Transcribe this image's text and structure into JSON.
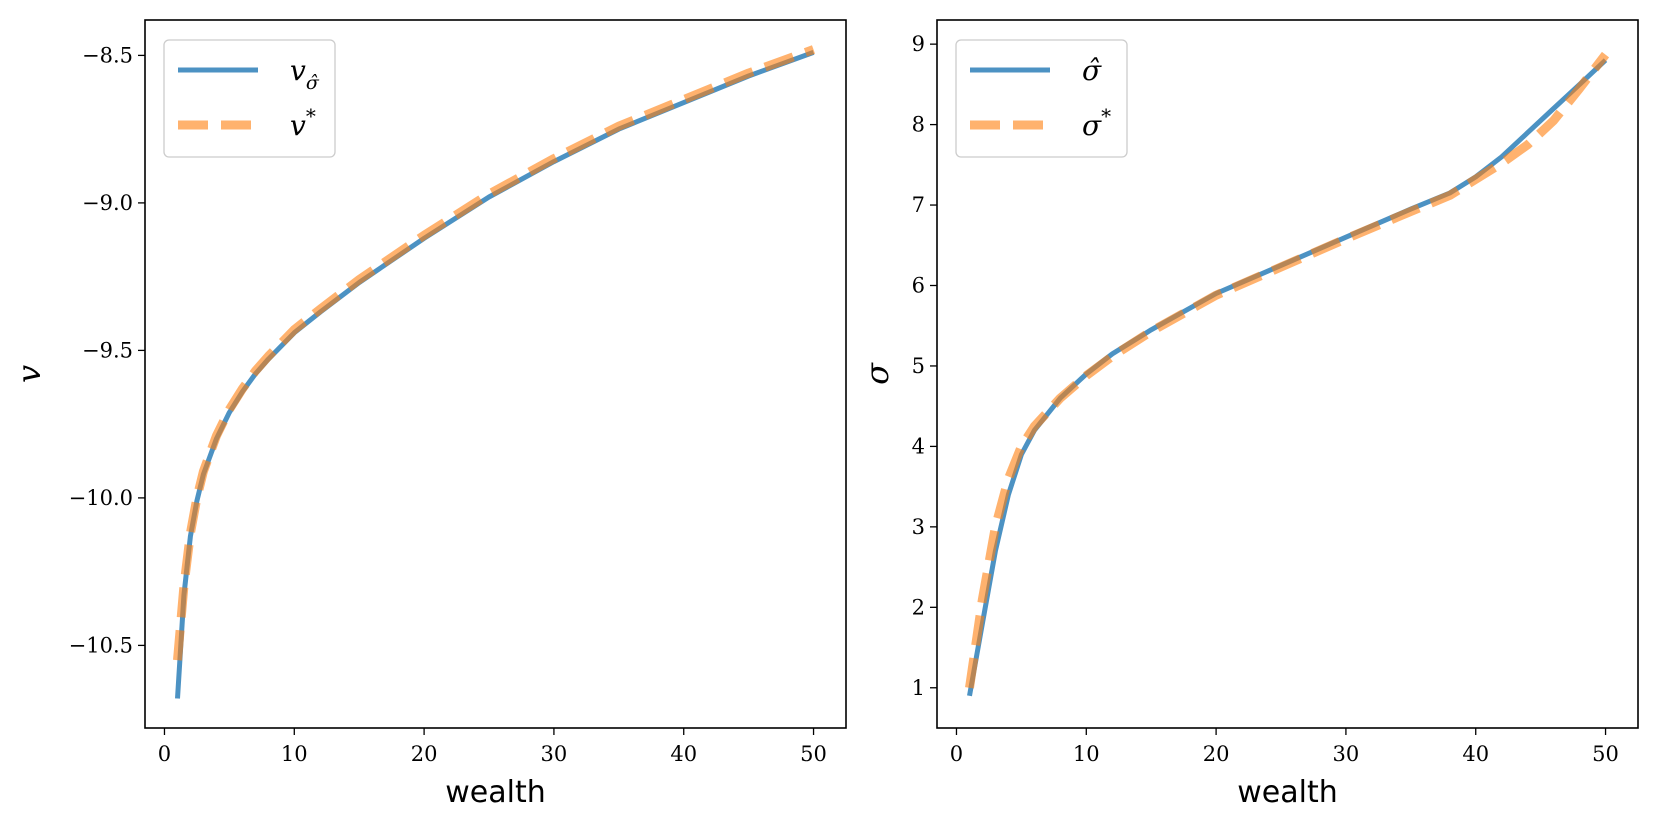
{
  "chart_data": [
    {
      "type": "line",
      "xlabel": "wealth",
      "ylabel": "v",
      "xlim": [
        -1.5,
        52.5
      ],
      "ylim": [
        -10.78,
        -8.38
      ],
      "xticks": [
        0,
        10,
        20,
        30,
        40,
        50
      ],
      "xtick_labels": [
        "0",
        "10",
        "20",
        "30",
        "40",
        "50"
      ],
      "yticks": [
        -10.5,
        -10.0,
        -9.5,
        -9.0,
        -8.5
      ],
      "ytick_labels": [
        "−10.5",
        "−10.0",
        "−9.5",
        "−9.0",
        "−8.5"
      ],
      "legend_position": "upper-left",
      "series": [
        {
          "name": "v_σ̂",
          "legend_main": "v",
          "legend_sub": "σ̂",
          "style": "solid",
          "color": "#1f77b4",
          "x": [
            1,
            1.5,
            2,
            2.5,
            3,
            4,
            5,
            6,
            7,
            8,
            10,
            12,
            15,
            20,
            25,
            30,
            35,
            40,
            45,
            50
          ],
          "y": [
            -10.68,
            -10.33,
            -10.13,
            -10.01,
            -9.92,
            -9.8,
            -9.71,
            -9.64,
            -9.58,
            -9.53,
            -9.44,
            -9.37,
            -9.27,
            -9.12,
            -8.98,
            -8.86,
            -8.75,
            -8.66,
            -8.57,
            -8.49
          ]
        },
        {
          "name": "v*",
          "legend_main": "v",
          "legend_sup": "*",
          "style": "dashed",
          "color": "#ff7f0e",
          "x": [
            1,
            1.5,
            2,
            2.5,
            3,
            4,
            5,
            6,
            7,
            8,
            10,
            12,
            15,
            20,
            25,
            30,
            35,
            40,
            45,
            50
          ],
          "y": [
            -10.55,
            -10.3,
            -10.12,
            -10.0,
            -9.91,
            -9.79,
            -9.7,
            -9.63,
            -9.57,
            -9.52,
            -9.43,
            -9.36,
            -9.26,
            -9.11,
            -8.97,
            -8.85,
            -8.74,
            -8.65,
            -8.56,
            -8.48
          ]
        }
      ]
    },
    {
      "type": "line",
      "xlabel": "wealth",
      "ylabel": "σ",
      "xlim": [
        -1.5,
        52.5
      ],
      "ylim": [
        0.5,
        9.3
      ],
      "xticks": [
        0,
        10,
        20,
        30,
        40,
        50
      ],
      "xtick_labels": [
        "0",
        "10",
        "20",
        "30",
        "40",
        "50"
      ],
      "yticks": [
        1,
        2,
        3,
        4,
        5,
        6,
        7,
        8,
        9
      ],
      "ytick_labels": [
        "1",
        "2",
        "3",
        "4",
        "5",
        "6",
        "7",
        "8",
        "9"
      ],
      "legend_position": "upper-left",
      "series": [
        {
          "name": "σ̂",
          "legend_main": "σ̂",
          "style": "solid",
          "color": "#1f77b4",
          "x": [
            1,
            2,
            3,
            4,
            5,
            6,
            8,
            10,
            12,
            15,
            20,
            25,
            30,
            35,
            38,
            40,
            42,
            44,
            46,
            48,
            50
          ],
          "y": [
            0.9,
            1.8,
            2.7,
            3.4,
            3.9,
            4.2,
            4.6,
            4.9,
            5.15,
            5.45,
            5.9,
            6.25,
            6.6,
            6.95,
            7.15,
            7.35,
            7.6,
            7.9,
            8.2,
            8.5,
            8.8
          ]
        },
        {
          "name": "σ*",
          "legend_main": "σ",
          "legend_sup": "*",
          "style": "dashed",
          "color": "#ff7f0e",
          "x": [
            1,
            2,
            3,
            4,
            5,
            6,
            8,
            10,
            12,
            15,
            20,
            25,
            30,
            35,
            38,
            40,
            42,
            44,
            46,
            48,
            50
          ],
          "y": [
            1.0,
            2.1,
            3.0,
            3.6,
            4.0,
            4.25,
            4.6,
            4.88,
            5.12,
            5.43,
            5.88,
            6.23,
            6.58,
            6.92,
            7.12,
            7.32,
            7.52,
            7.75,
            8.05,
            8.45,
            8.87
          ]
        }
      ]
    }
  ]
}
